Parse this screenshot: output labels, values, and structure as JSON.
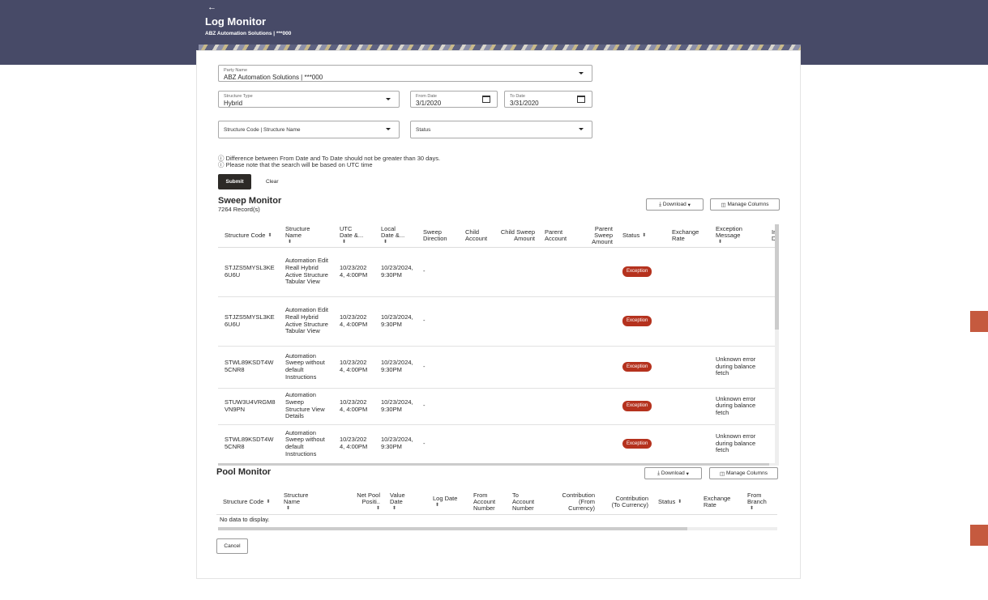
{
  "header": {
    "title": "Log Monitor",
    "subtitle": "ABZ Automation Solutions | ***000"
  },
  "form": {
    "party_name": {
      "label": "Party Name",
      "value": "ABZ Automation Solutions | ***000"
    },
    "structure_type": {
      "label": "Structure Type",
      "value": "Hybrid"
    },
    "from_date": {
      "label": "From Date",
      "value": "3/1/2020"
    },
    "to_date": {
      "label": "To Date",
      "value": "3/31/2020"
    },
    "structure_code": {
      "placeholder": "Structure Code | Structure Name"
    },
    "status": {
      "placeholder": "Status"
    },
    "notes": [
      "Difference between From Date and To Date should not be greater than 30 days.",
      "Please note that the search will be based on UTC time"
    ],
    "submit": "Submit",
    "clear": "Clear"
  },
  "sweep_monitor": {
    "title": "Sweep Monitor",
    "records": "7264 Record(s)",
    "download": "Download",
    "manage_columns": "Manage Columns",
    "columns": [
      {
        "label": "Structure Code",
        "sort": true
      },
      {
        "label": "Structure Name",
        "sort": true
      },
      {
        "label": "UTC Date &...",
        "sort": true
      },
      {
        "label": "Local Date &...",
        "sort": true
      },
      {
        "label": "Sweep Direction"
      },
      {
        "label": "Child Account"
      },
      {
        "label": "Child Sweep Amount"
      },
      {
        "label": "Parent Account"
      },
      {
        "label": "Parent Sweep Amount"
      },
      {
        "label": "Status",
        "sort": true
      },
      {
        "label": "Exchange Rate"
      },
      {
        "label": "Exception Message",
        "sort": true
      },
      {
        "label": "Ins De"
      }
    ],
    "rows": [
      {
        "code": "STJZS5MYSL3KE6U6U",
        "name": "Automation Edit Reall Hybrid Active Structure Tabular View",
        "utc": "10/23/2024, 4:00PM",
        "local": "10/23/2024, 9:30PM",
        "direction": "-",
        "status": "Exception"
      },
      {
        "code": "STJZS5MYSL3KE6U6U",
        "name": "Automation Edit Reall Hybrid Active Structure Tabular View",
        "utc": "10/23/2024, 4:00PM",
        "local": "10/23/2024, 9:30PM",
        "direction": "-",
        "status": "Exception"
      },
      {
        "code": "STWL89KSDT4W5CNR8",
        "name": "Automation Sweep without default Instructions",
        "utc": "10/23/2024, 4:00PM",
        "local": "10/23/2024, 9:30PM",
        "direction": "-",
        "status": "Exception",
        "message": "Unknown error during balance fetch"
      },
      {
        "code": "STUW3U4VRGM8VN9PN",
        "name": "Automation Sweep Structure View Details",
        "utc": "10/23/2024, 4:00PM",
        "local": "10/23/2024, 9:30PM",
        "direction": "-",
        "status": "Exception",
        "message": "Unknown error during balance fetch"
      },
      {
        "code": "STWL89KSDT4W5CNR8",
        "name": "Automation Sweep without default Instructions",
        "utc": "10/23/2024, 4:00PM",
        "local": "10/23/2024, 9:30PM",
        "direction": "-",
        "status": "Exception",
        "message": "Unknown error during balance fetch"
      }
    ]
  },
  "pool_monitor": {
    "title": "Pool Monitor",
    "download": "Download",
    "manage_columns": "Manage Columns",
    "columns": [
      {
        "label": "Structure Code",
        "sort": true
      },
      {
        "label": "Structure Name",
        "sort": true
      },
      {
        "label": "Net Pool Positi..",
        "sort": true
      },
      {
        "label": "Value Date",
        "sort": true
      },
      {
        "label": "Log Date",
        "sort": true
      },
      {
        "label": "From Account Number"
      },
      {
        "label": "To Account Number"
      },
      {
        "label": "Contribution (From Currency)"
      },
      {
        "label": "Contribution (To Currency)"
      },
      {
        "label": "Status",
        "sort": true
      },
      {
        "label": "Exchange Rate"
      },
      {
        "label": "From Branch",
        "sort": true
      }
    ],
    "empty": "No data to display."
  },
  "cancel": "Cancel"
}
